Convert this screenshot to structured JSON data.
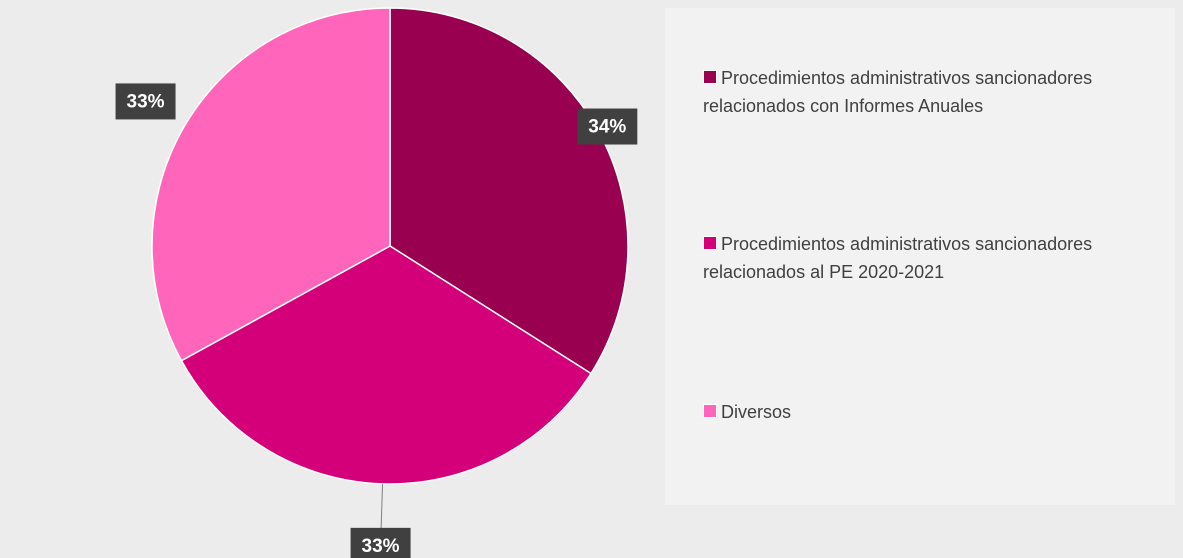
{
  "chart_data": {
    "type": "pie",
    "categories": [
      "Procedimientos administrativos sancionadores relacionados con Informes Anuales",
      "Procedimientos administrativos sancionadores relacionados al PE 2020-2021",
      "Diversos"
    ],
    "values": [
      34,
      33,
      33
    ],
    "value_labels": [
      "34%",
      "33%",
      "33%"
    ],
    "colors": [
      "#990050",
      "#d4007a",
      "#ff66bb"
    ]
  }
}
